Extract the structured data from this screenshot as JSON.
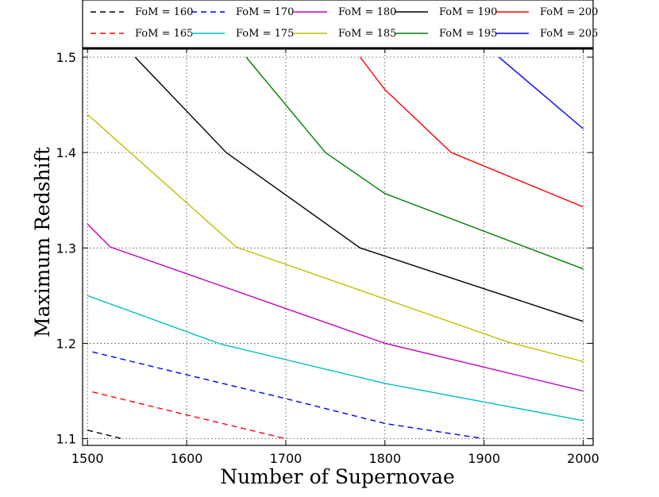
{
  "chart_data": {
    "type": "line",
    "title": "",
    "xlabel": "Number of Supernovae",
    "ylabel": "Maximum Redshift",
    "xlim": [
      1495,
      2010
    ],
    "ylim": [
      1.093,
      1.51
    ],
    "xticks": [
      1500,
      1600,
      1700,
      1800,
      1900,
      2000
    ],
    "yticks": [
      1.1,
      1.2,
      1.3,
      1.4,
      1.5
    ],
    "xtick_labels": [
      "1500",
      "1600",
      "1700",
      "1800",
      "1900",
      "2000"
    ],
    "ytick_labels": [
      "1.1",
      "1.2",
      "1.3",
      "1.4",
      "1.5"
    ],
    "grid": true,
    "legend_position": "top",
    "series": [
      {
        "name": "FoM = 160",
        "color": "#000000",
        "dashed": true,
        "x": [
          1500,
          1535
        ],
        "y": [
          1.109,
          1.1
        ]
      },
      {
        "name": "FoM = 165",
        "color": "#ff0000",
        "dashed": true,
        "x": [
          1505,
          1600,
          1700
        ],
        "y": [
          1.149,
          1.125,
          1.1
        ]
      },
      {
        "name": "FoM = 170",
        "color": "#0000ff",
        "dashed": true,
        "x": [
          1505,
          1600,
          1700,
          1800,
          1900
        ],
        "y": [
          1.191,
          1.167,
          1.142,
          1.116,
          1.1
        ]
      },
      {
        "name": "FoM = 175",
        "color": "#00bfbf",
        "dashed": false,
        "x": [
          1500,
          1635,
          1800,
          2000
        ],
        "y": [
          1.25,
          1.199,
          1.158,
          1.119
        ]
      },
      {
        "name": "FoM = 180",
        "color": "#bf00bf",
        "dashed": false,
        "x": [
          1500,
          1523,
          1800,
          2000
        ],
        "y": [
          1.325,
          1.301,
          1.2,
          1.15
        ]
      },
      {
        "name": "FoM = 185",
        "color": "#bfbf00",
        "dashed": false,
        "x": [
          1500,
          1650,
          1925,
          2000
        ],
        "y": [
          1.44,
          1.301,
          1.201,
          1.181
        ]
      },
      {
        "name": "FoM = 190",
        "color": "#000000",
        "dashed": false,
        "x": [
          1548,
          1640,
          1775,
          2000
        ],
        "y": [
          1.5,
          1.4,
          1.3,
          1.223
        ]
      },
      {
        "name": "FoM = 195",
        "color": "#008000",
        "dashed": false,
        "x": [
          1660,
          1740,
          1800,
          2000
        ],
        "y": [
          1.5,
          1.4,
          1.357,
          1.278
        ]
      },
      {
        "name": "FoM = 200",
        "color": "#ff0000",
        "dashed": false,
        "x": [
          1775,
          1800,
          1867,
          2000
        ],
        "y": [
          1.5,
          1.466,
          1.4,
          1.343
        ]
      },
      {
        "name": "FoM = 205",
        "color": "#0000ff",
        "dashed": false,
        "x": [
          1915,
          2000
        ],
        "y": [
          1.5,
          1.425
        ]
      }
    ]
  }
}
